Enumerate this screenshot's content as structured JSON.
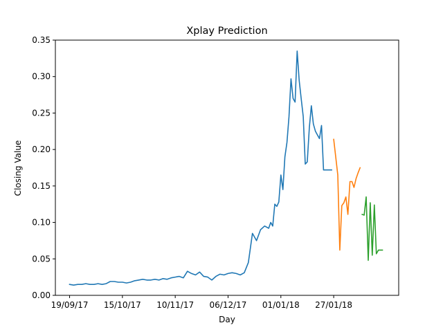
{
  "chart_data": {
    "type": "line",
    "title": "Xplay Prediction",
    "xlabel": "Day",
    "ylabel": "Closing Value",
    "x_ticks": [
      "19/09/17",
      "15/10/17",
      "10/11/17",
      "06/12/17",
      "01/01/18",
      "27/01/18"
    ],
    "y_ticks": [
      "0.00",
      "0.05",
      "0.10",
      "0.15",
      "0.20",
      "0.25",
      "0.30",
      "0.35"
    ],
    "ylim": [
      0,
      0.35
    ],
    "xlim": [
      "2017-09-12",
      "2018-02-28"
    ],
    "grid": false,
    "series": [
      {
        "color": "#1f77b4",
        "x": [
          "2017-09-19",
          "2017-09-21",
          "2017-09-23",
          "2017-09-25",
          "2017-09-27",
          "2017-09-29",
          "2017-10-01",
          "2017-10-03",
          "2017-10-05",
          "2017-10-07",
          "2017-10-09",
          "2017-10-11",
          "2017-10-13",
          "2017-10-15",
          "2017-10-17",
          "2017-10-19",
          "2017-10-21",
          "2017-10-23",
          "2017-10-25",
          "2017-10-27",
          "2017-10-29",
          "2017-10-31",
          "2017-11-02",
          "2017-11-04",
          "2017-11-06",
          "2017-11-08",
          "2017-11-10",
          "2017-11-12",
          "2017-11-14",
          "2017-11-16",
          "2017-11-18",
          "2017-11-20",
          "2017-11-22",
          "2017-11-24",
          "2017-11-26",
          "2017-11-28",
          "2017-11-30",
          "2017-12-02",
          "2017-12-04",
          "2017-12-06",
          "2017-12-08",
          "2017-12-10",
          "2017-12-12",
          "2017-12-14",
          "2017-12-16",
          "2017-12-18",
          "2017-12-20",
          "2017-12-22",
          "2017-12-24",
          "2017-12-26",
          "2017-12-27",
          "2017-12-28",
          "2017-12-29",
          "2017-12-30",
          "2017-12-31",
          "2018-01-01",
          "2018-01-02",
          "2018-01-03",
          "2018-01-04",
          "2018-01-05",
          "2018-01-06",
          "2018-01-07",
          "2018-01-08",
          "2018-01-09",
          "2018-01-10",
          "2018-01-11",
          "2018-01-12",
          "2018-01-13",
          "2018-01-14",
          "2018-01-15",
          "2018-01-16",
          "2018-01-17",
          "2018-01-18",
          "2018-01-19",
          "2018-01-20",
          "2018-01-21",
          "2018-01-22",
          "2018-01-23",
          "2018-01-24",
          "2018-01-25",
          "2018-01-26"
        ],
        "y": [
          0.015,
          0.014,
          0.015,
          0.015,
          0.016,
          0.015,
          0.015,
          0.016,
          0.015,
          0.016,
          0.019,
          0.019,
          0.018,
          0.018,
          0.017,
          0.018,
          0.02,
          0.021,
          0.022,
          0.021,
          0.021,
          0.022,
          0.021,
          0.023,
          0.022,
          0.024,
          0.025,
          0.026,
          0.024,
          0.033,
          0.03,
          0.028,
          0.032,
          0.026,
          0.025,
          0.021,
          0.026,
          0.029,
          0.028,
          0.03,
          0.031,
          0.03,
          0.028,
          0.031,
          0.045,
          0.085,
          0.075,
          0.09,
          0.095,
          0.092,
          0.1,
          0.095,
          0.125,
          0.122,
          0.128,
          0.165,
          0.145,
          0.19,
          0.21,
          0.245,
          0.297,
          0.27,
          0.265,
          0.335,
          0.295,
          0.27,
          0.245,
          0.18,
          0.183,
          0.23,
          0.26,
          0.235,
          0.225,
          0.22,
          0.215,
          0.233,
          0.172,
          0.172,
          0.172,
          0.172,
          0.172
        ]
      },
      {
        "color": "#ff7f0e",
        "x": [
          "2018-01-27",
          "2018-01-28",
          "2018-01-29",
          "2018-01-30",
          "2018-01-31",
          "2018-02-01",
          "2018-02-02",
          "2018-02-03",
          "2018-02-04",
          "2018-02-05",
          "2018-02-06",
          "2018-02-07",
          "2018-02-08",
          "2018-02-09"
        ],
        "y": [
          0.214,
          0.19,
          0.165,
          0.062,
          0.123,
          0.127,
          0.135,
          0.111,
          0.156,
          0.156,
          0.148,
          0.16,
          0.168,
          0.175
        ]
      },
      {
        "color": "#2ca02c",
        "x": [
          "2018-02-10",
          "2018-02-11",
          "2018-02-12",
          "2018-02-13",
          "2018-02-14",
          "2018-02-15",
          "2018-02-16",
          "2018-02-17",
          "2018-02-18",
          "2018-02-19",
          "2018-02-20"
        ],
        "y": [
          0.111,
          0.11,
          0.135,
          0.048,
          0.127,
          0.055,
          0.124,
          0.057,
          0.062,
          0.062,
          0.062
        ]
      }
    ]
  }
}
